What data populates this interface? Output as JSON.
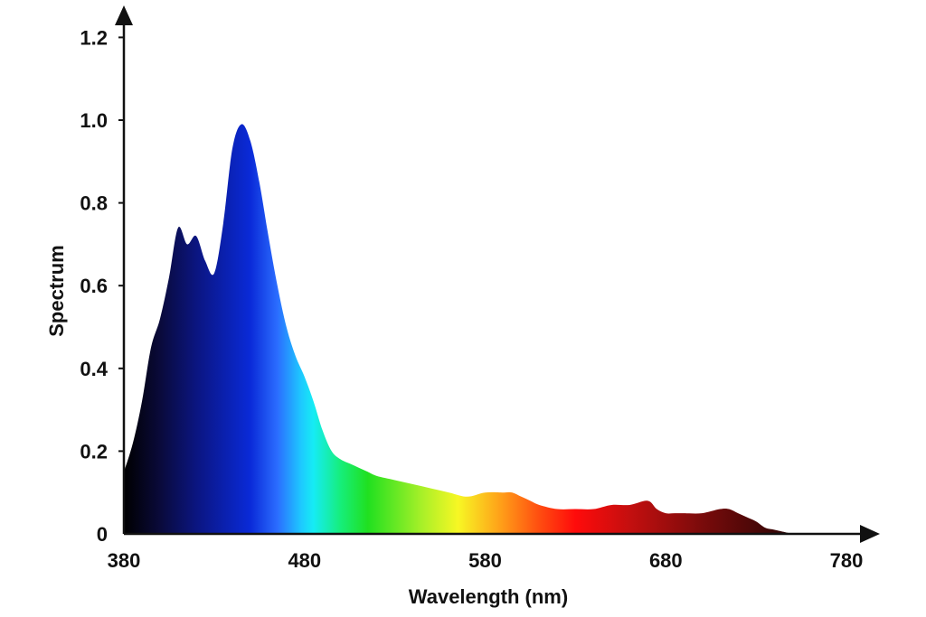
{
  "chart_data": {
    "type": "area",
    "title": "",
    "xlabel": "Wavelength (nm)",
    "ylabel": "Spectrum",
    "xlim": [
      380,
      780
    ],
    "ylim": [
      0,
      1.25
    ],
    "x_ticks": [
      "380",
      "480",
      "580",
      "680",
      "780"
    ],
    "y_ticks": [
      "0",
      "0.2",
      "0.4",
      "0.6",
      "0.8",
      "1.0",
      "1.2"
    ],
    "grid": false,
    "legend": "none",
    "fill": "visible-spectrum gradient",
    "series": [
      {
        "x": [
          380,
          385,
          390,
          395,
          400,
          405,
          410,
          415,
          420,
          425,
          430,
          435,
          440,
          445,
          450,
          455,
          460,
          465,
          470,
          475,
          480,
          485,
          490,
          495,
          500,
          505,
          510,
          515,
          520,
          530,
          540,
          550,
          560,
          570,
          580,
          590,
          595,
          600,
          605,
          610,
          620,
          630,
          640,
          650,
          660,
          670,
          675,
          680,
          685,
          690,
          700,
          710,
          715,
          720,
          725,
          730,
          735,
          740,
          750
        ],
        "values": [
          0.15,
          0.22,
          0.32,
          0.45,
          0.52,
          0.62,
          0.74,
          0.7,
          0.72,
          0.66,
          0.63,
          0.75,
          0.93,
          0.99,
          0.95,
          0.85,
          0.72,
          0.6,
          0.5,
          0.43,
          0.38,
          0.32,
          0.25,
          0.2,
          0.18,
          0.17,
          0.16,
          0.15,
          0.14,
          0.13,
          0.12,
          0.11,
          0.1,
          0.09,
          0.1,
          0.1,
          0.1,
          0.09,
          0.08,
          0.07,
          0.06,
          0.06,
          0.06,
          0.07,
          0.07,
          0.08,
          0.06,
          0.05,
          0.05,
          0.05,
          0.05,
          0.06,
          0.06,
          0.05,
          0.04,
          0.03,
          0.015,
          0.01,
          0
        ]
      }
    ],
    "colors": {
      "axis": "#111111",
      "gradient": [
        {
          "at": 380,
          "color": "#000000"
        },
        {
          "at": 400,
          "color": "#0a0a3a"
        },
        {
          "at": 420,
          "color": "#0b1580"
        },
        {
          "at": 450,
          "color": "#0a2ad8"
        },
        {
          "at": 465,
          "color": "#2b6dff"
        },
        {
          "at": 478,
          "color": "#1ec8ff"
        },
        {
          "at": 485,
          "color": "#16ecf4"
        },
        {
          "at": 500,
          "color": "#16ee7a"
        },
        {
          "at": 515,
          "color": "#20e020"
        },
        {
          "at": 545,
          "color": "#a8f028"
        },
        {
          "at": 565,
          "color": "#f7f724"
        },
        {
          "at": 590,
          "color": "#ff9a18"
        },
        {
          "at": 610,
          "color": "#ff4d10"
        },
        {
          "at": 630,
          "color": "#ff0b0b"
        },
        {
          "at": 660,
          "color": "#c40f0f"
        },
        {
          "at": 700,
          "color": "#7a0b0b"
        },
        {
          "at": 740,
          "color": "#3a0606"
        },
        {
          "at": 760,
          "color": "#1a0303"
        }
      ]
    }
  }
}
